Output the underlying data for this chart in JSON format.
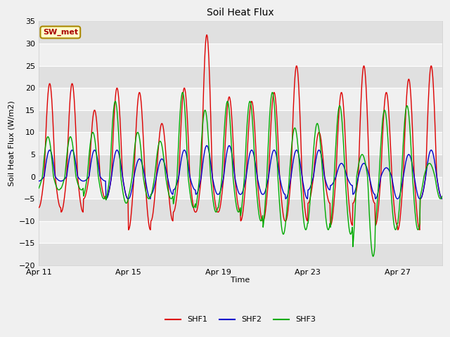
{
  "title": "Soil Heat Flux",
  "ylabel": "Soil Heat Flux (W/m2)",
  "xlabel": "Time",
  "ylim": [
    -20,
    35
  ],
  "yticks": [
    -20,
    -15,
    -10,
    -5,
    0,
    5,
    10,
    15,
    20,
    25,
    30,
    35
  ],
  "bg_outer": "#f0f0f0",
  "bg_inner": "#ffffff",
  "line_colors": {
    "SHF1": "#dd0000",
    "SHF2": "#0000cc",
    "SHF3": "#00aa00"
  },
  "annotation_text": "SW_met",
  "annotation_color": "#aa0000",
  "annotation_bg": "#ffffcc",
  "annotation_border": "#aa8800",
  "x_tick_labels": [
    "Apr 11",
    "Apr 15",
    "Apr 19",
    "Apr 23",
    "Apr 27"
  ],
  "x_tick_positions": [
    0,
    4,
    8,
    12,
    16
  ],
  "n_days": 18,
  "n_points_per_day": 48,
  "stripe_dark": "#e0e0e0",
  "stripe_light": "#f0f0f0"
}
